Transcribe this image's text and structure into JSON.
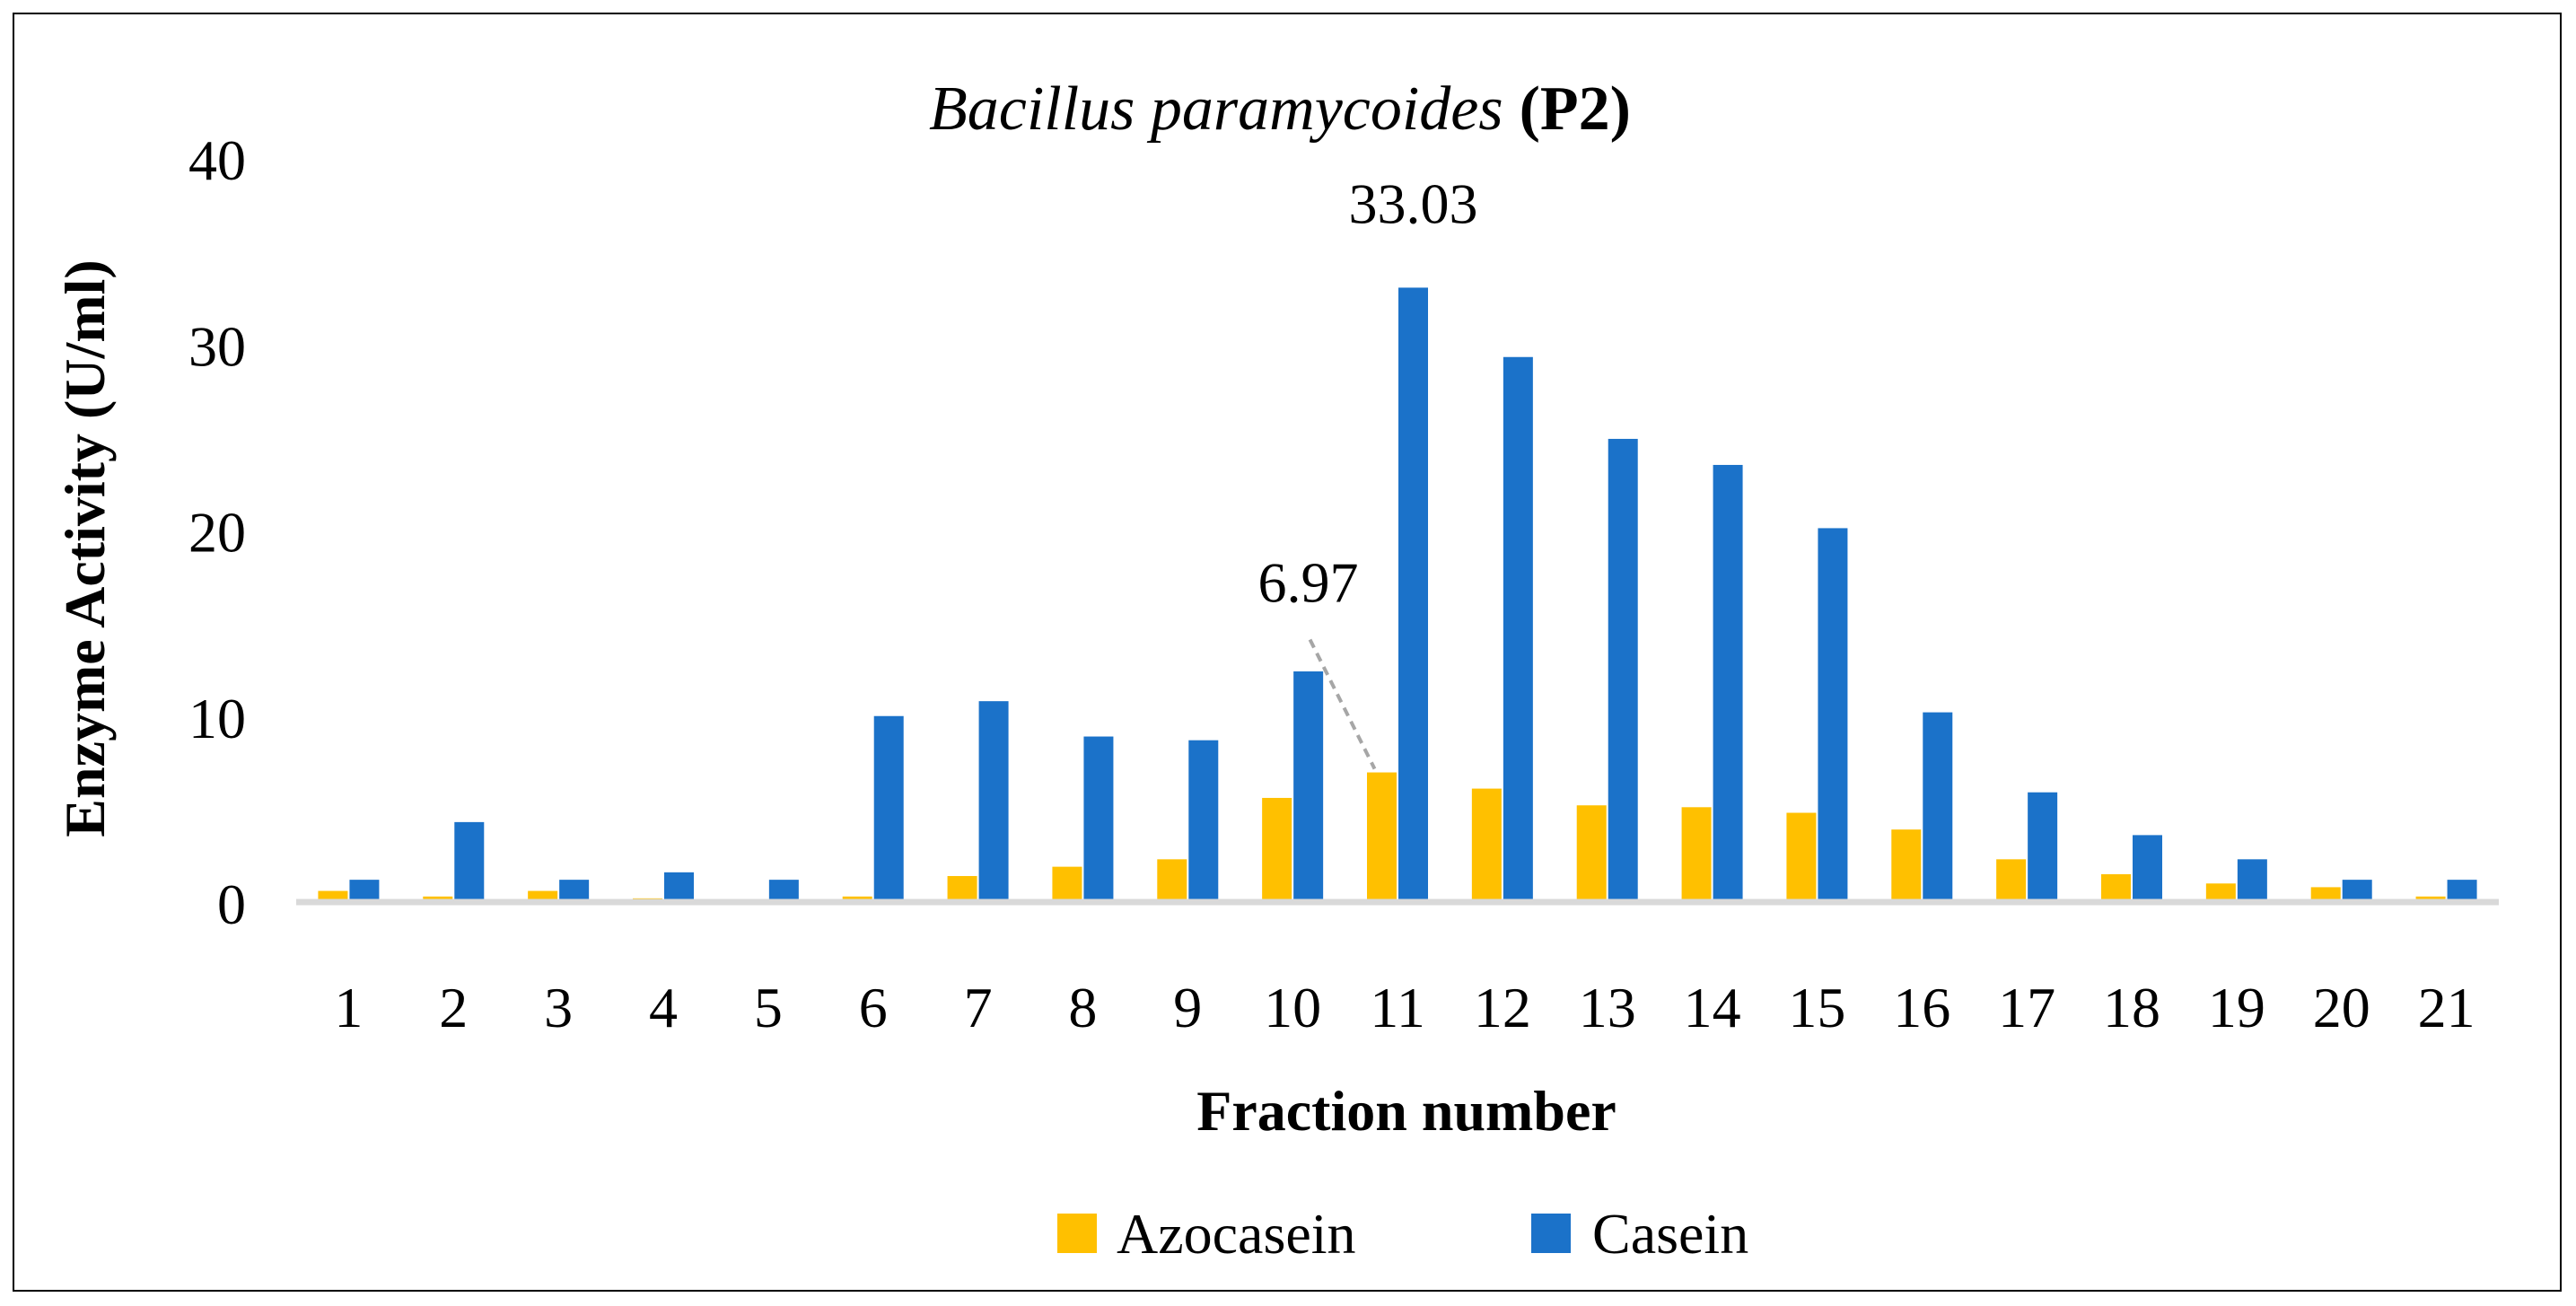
{
  "chart_data": {
    "type": "bar",
    "title": {
      "italic": "Bacillus paramycoides",
      "bold": "(P2)"
    },
    "xlabel": "Fraction number",
    "ylabel": "Enzyme Activity (U/ml)",
    "ylim": [
      0,
      40
    ],
    "yticks": [
      "0",
      "10",
      "20",
      "30",
      "40"
    ],
    "categories": [
      "1",
      "2",
      "3",
      "4",
      "5",
      "6",
      "7",
      "8",
      "9",
      "10",
      "11",
      "12",
      "13",
      "14",
      "15",
      "16",
      "17",
      "18",
      "19",
      "20",
      "21"
    ],
    "series": [
      {
        "name": "Azocasein",
        "color": "#FFC000",
        "values": [
          0.6,
          0.3,
          0.6,
          0.2,
          0.0,
          0.3,
          1.4,
          1.9,
          2.3,
          5.6,
          6.97,
          6.1,
          5.2,
          5.1,
          4.8,
          3.9,
          2.3,
          1.5,
          1.0,
          0.8,
          0.3
        ]
      },
      {
        "name": "Casein",
        "color": "#1B72C9",
        "values": [
          1.2,
          4.3,
          1.2,
          1.6,
          1.2,
          10.0,
          10.8,
          8.9,
          8.7,
          12.4,
          33.03,
          29.3,
          24.9,
          23.5,
          20.1,
          10.2,
          5.9,
          3.6,
          2.3,
          1.2,
          1.2
        ]
      }
    ],
    "data_labels": [
      {
        "series": "Casein",
        "category": "11",
        "text": "33.03"
      },
      {
        "series": "Azocasein",
        "category": "11",
        "text": "6.97"
      }
    ],
    "legend": "bottom",
    "grid": false
  }
}
